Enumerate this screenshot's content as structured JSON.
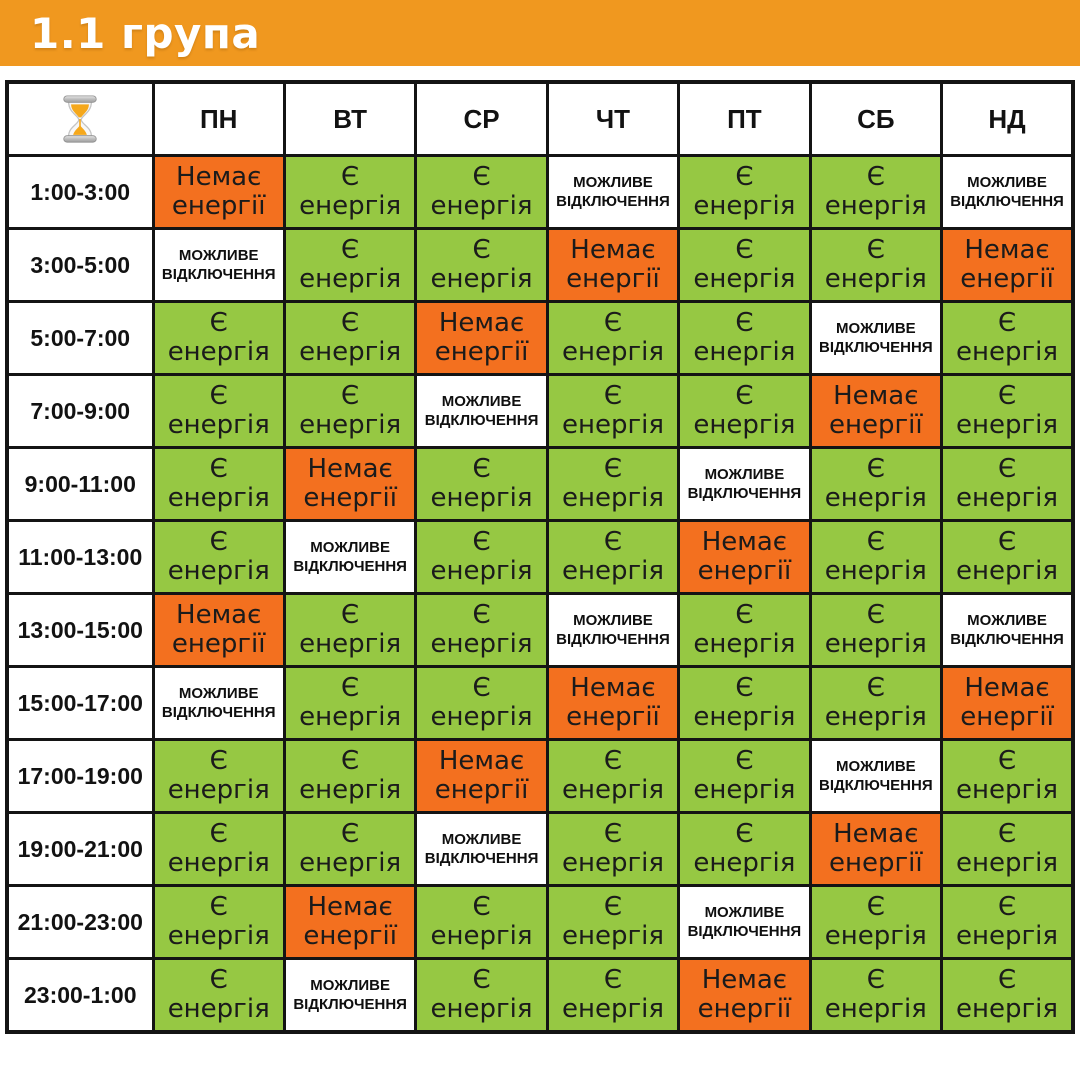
{
  "title": "1.1 група",
  "colors": {
    "band_orange": "#F0981F",
    "cell_orange": "#F3701F",
    "cell_green": "#96C843",
    "cell_white": "#FFFFFF",
    "border": "#141414",
    "title_text": "#FFFFFF",
    "cell_text": "#1B1B1B",
    "sand_orange": "#F5A81C"
  },
  "corner_icon": "hourglass-icon",
  "states": {
    "yes": {
      "label": "Є енергія",
      "lines": [
        "Є",
        "енергія"
      ],
      "class": "s-yes"
    },
    "no": {
      "label": "Немає енергії",
      "lines": [
        "Немає",
        "енергії"
      ],
      "class": "s-no"
    },
    "maybe": {
      "label": "МОЖЛИВЕ ВІДКЛЮЧЕННЯ",
      "lines": [
        "МОЖЛИВЕ",
        "ВІДКЛЮЧЕННЯ"
      ],
      "class": "s-maybe"
    }
  },
  "chart_data": {
    "type": "table",
    "title": "1.1 група",
    "columns": [
      "ПН",
      "ВТ",
      "СР",
      "ЧТ",
      "ПТ",
      "СБ",
      "НД"
    ],
    "row_header_values": [
      "1:00-3:00",
      "3:00-5:00",
      "5:00-7:00",
      "7:00-9:00",
      "9:00-11:00",
      "11:00-13:00",
      "13:00-15:00",
      "15:00-17:00",
      "17:00-19:00",
      "19:00-21:00",
      "21:00-23:00",
      "23:00-1:00"
    ],
    "cell_states": [
      [
        "no",
        "yes",
        "yes",
        "maybe",
        "yes",
        "yes",
        "maybe"
      ],
      [
        "maybe",
        "yes",
        "yes",
        "no",
        "yes",
        "yes",
        "no"
      ],
      [
        "yes",
        "yes",
        "no",
        "yes",
        "yes",
        "maybe",
        "yes"
      ],
      [
        "yes",
        "yes",
        "maybe",
        "yes",
        "yes",
        "no",
        "yes"
      ],
      [
        "yes",
        "no",
        "yes",
        "yes",
        "maybe",
        "yes",
        "yes"
      ],
      [
        "yes",
        "maybe",
        "yes",
        "yes",
        "no",
        "yes",
        "yes"
      ],
      [
        "no",
        "yes",
        "yes",
        "maybe",
        "yes",
        "yes",
        "maybe"
      ],
      [
        "maybe",
        "yes",
        "yes",
        "no",
        "yes",
        "yes",
        "no"
      ],
      [
        "yes",
        "yes",
        "no",
        "yes",
        "yes",
        "maybe",
        "yes"
      ],
      [
        "yes",
        "yes",
        "maybe",
        "yes",
        "yes",
        "no",
        "yes"
      ],
      [
        "yes",
        "no",
        "yes",
        "yes",
        "maybe",
        "yes",
        "yes"
      ],
      [
        "yes",
        "maybe",
        "yes",
        "yes",
        "no",
        "yes",
        "yes"
      ]
    ],
    "state_legend": {
      "yes": "Є енергія",
      "no": "Немає енергії",
      "maybe": "МОЖЛИВЕ ВІДКЛЮЧЕННЯ"
    }
  }
}
